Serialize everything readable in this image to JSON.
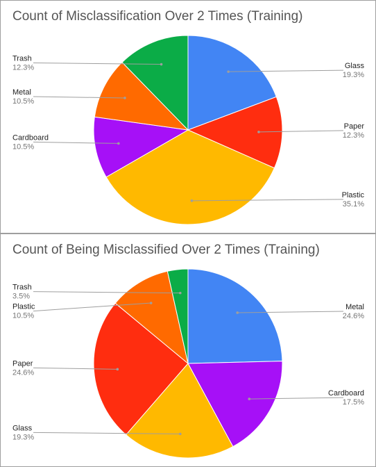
{
  "chart_data": [
    {
      "type": "pie",
      "title": "Count of Misclassification Over 2 Times (Training)",
      "slices": [
        {
          "label": "Glass",
          "value": 19.3,
          "percent_label": "19.3%",
          "color": "#4285f4"
        },
        {
          "label": "Paper",
          "value": 12.3,
          "percent_label": "12.3%",
          "color": "#ff2d0f"
        },
        {
          "label": "Plastic",
          "value": 35.1,
          "percent_label": "35.1%",
          "color": "#ffb900"
        },
        {
          "label": "Cardboard",
          "value": 10.5,
          "percent_label": "10.5%",
          "color": "#a610f7"
        },
        {
          "label": "Metal",
          "value": 10.5,
          "percent_label": "10.5%",
          "color": "#ff6a00"
        },
        {
          "label": "Trash",
          "value": 12.3,
          "percent_label": "12.3%",
          "color": "#0bac47"
        }
      ]
    },
    {
      "type": "pie",
      "title": "Count of Being Misclassified Over 2 Times (Training)",
      "slices": [
        {
          "label": "Metal",
          "value": 24.6,
          "percent_label": "24.6%",
          "color": "#4285f4"
        },
        {
          "label": "Cardboard",
          "value": 17.5,
          "percent_label": "17.5%",
          "color": "#a610f7"
        },
        {
          "label": "Glass",
          "value": 19.3,
          "percent_label": "19.3%",
          "color": "#ffb900"
        },
        {
          "label": "Paper",
          "value": 24.6,
          "percent_label": "24.6%",
          "color": "#ff2d0f"
        },
        {
          "label": "Plastic",
          "value": 10.5,
          "percent_label": "10.5%",
          "color": "#ff6a00"
        },
        {
          "label": "Trash",
          "value": 3.5,
          "percent_label": "3.5%",
          "color": "#0bac47"
        }
      ]
    }
  ]
}
